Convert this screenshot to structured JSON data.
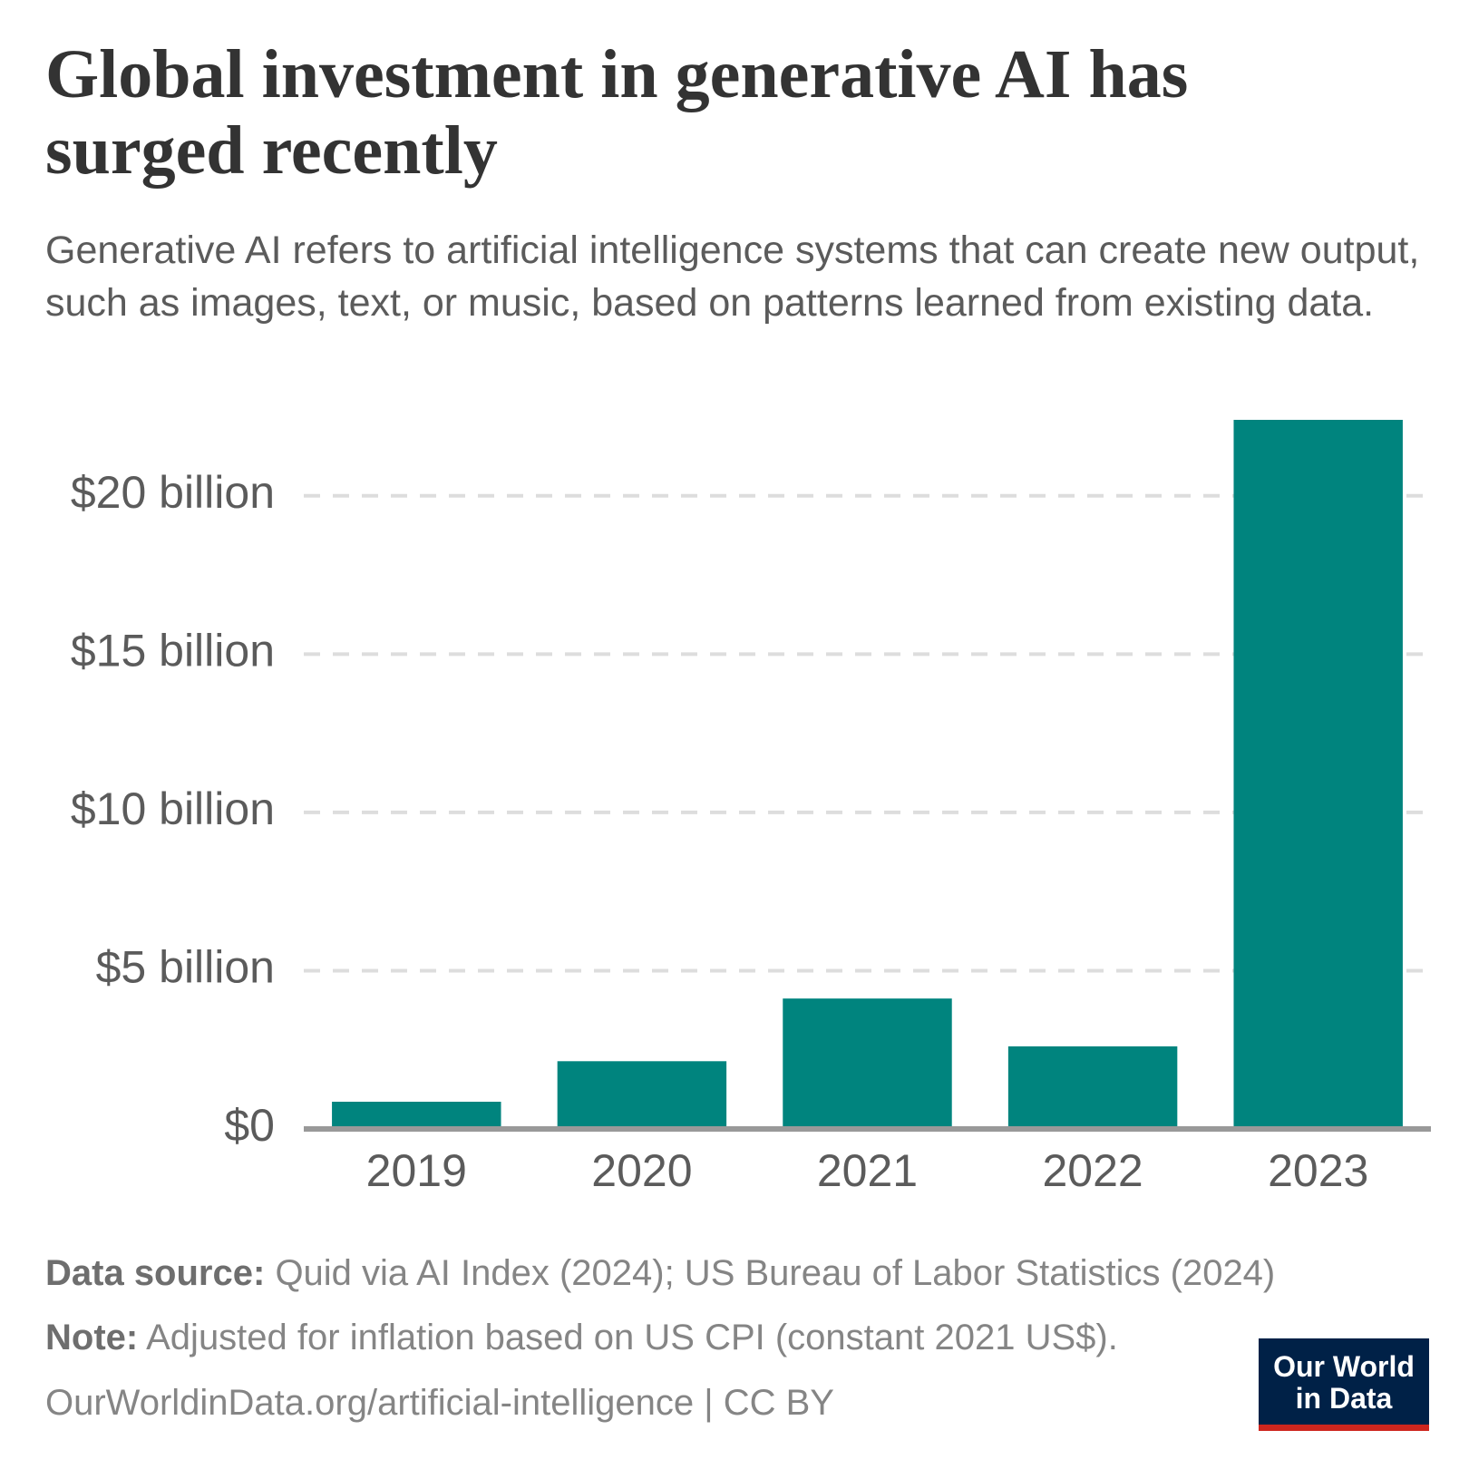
{
  "header": {
    "title": "Global investment in generative AI has surged recently",
    "subtitle": "Generative AI refers to artificial intelligence systems that can create new output, such as images, text, or music, based on patterns learned from existing data."
  },
  "chart_data": {
    "type": "bar",
    "categories": [
      "2019",
      "2020",
      "2021",
      "2022",
      "2023"
    ],
    "values": [
      860000000,
      2140000000,
      4120000000,
      2610000000,
      22400000000
    ],
    "color": "#00847e",
    "ylim": [
      0,
      22400000000
    ],
    "yticks": [
      {
        "value": 0,
        "label": "$0"
      },
      {
        "value": 5000000000,
        "label": "$5 billion"
      },
      {
        "value": 10000000000,
        "label": "$10 billion"
      },
      {
        "value": 15000000000,
        "label": "$15 billion"
      },
      {
        "value": 20000000000,
        "label": "$20 billion"
      }
    ],
    "grid": true
  },
  "footer": {
    "source_label": "Data source:",
    "source": "Quid via AI Index (2024); US Bureau of Labor Statistics (2024)",
    "note_label": "Note:",
    "note": "Adjusted for inflation based on US CPI (constant 2021 US$).",
    "url": "OurWorldinData.org/artificial-intelligence | CC BY",
    "logo": [
      "Our World",
      "in Data"
    ]
  }
}
